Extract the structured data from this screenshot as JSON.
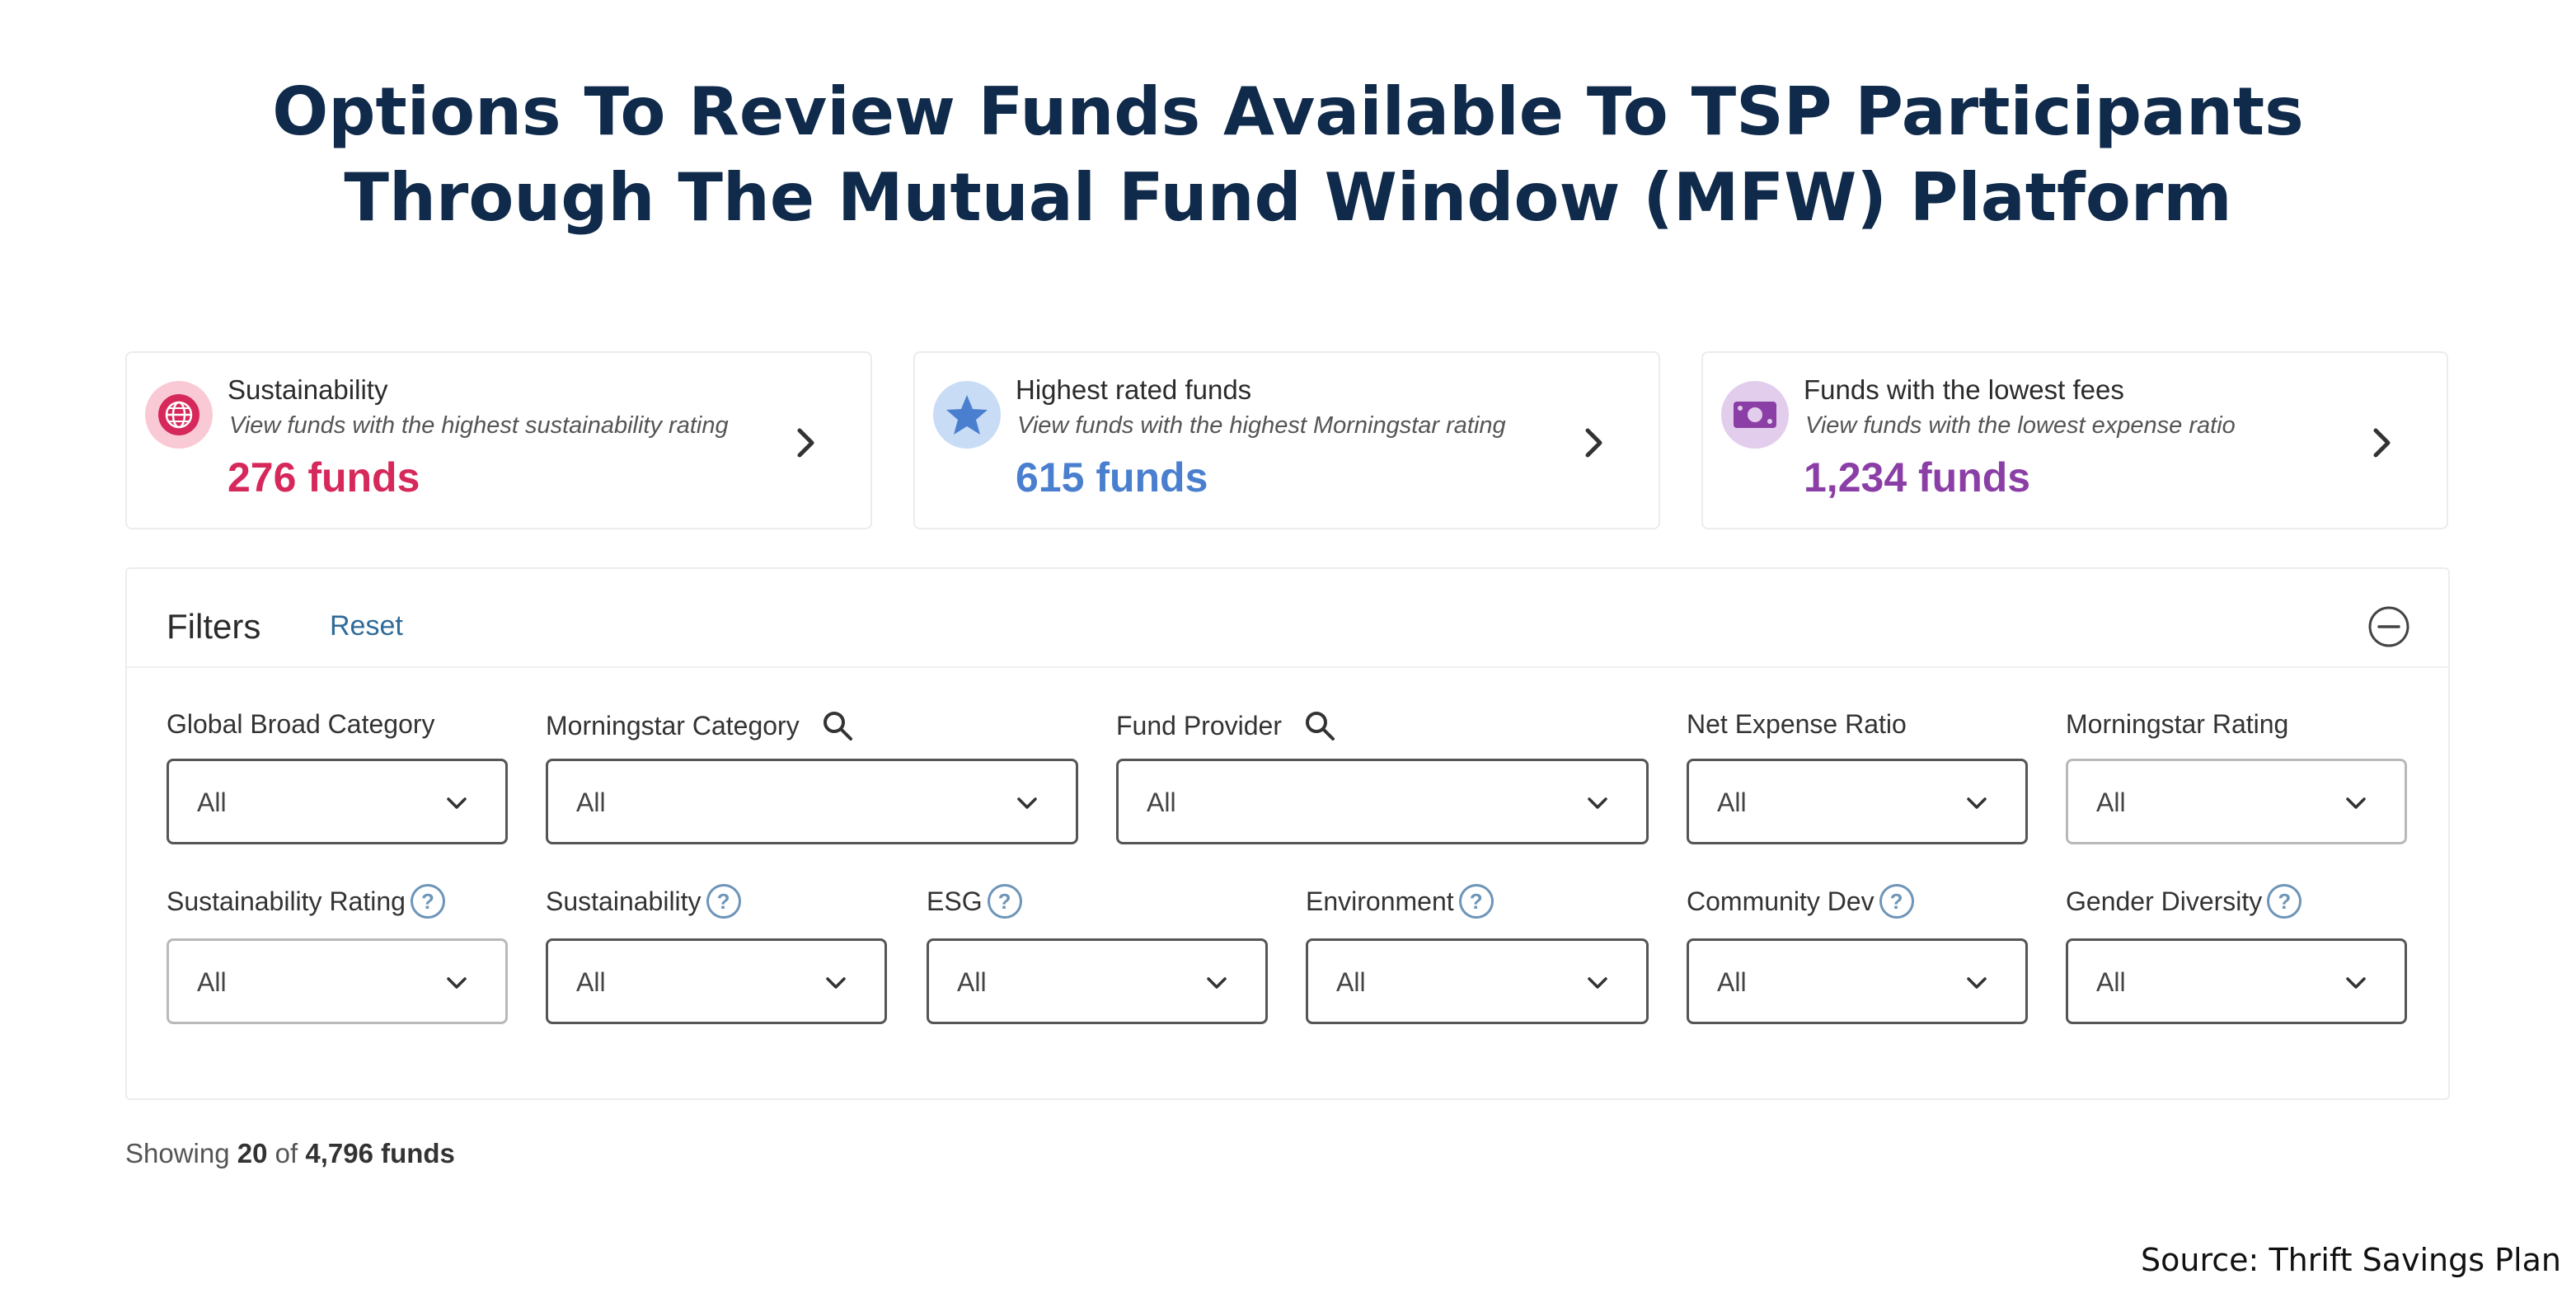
{
  "title": {
    "line1": "Options To Review Funds Available To TSP Participants",
    "line2": "Through The Mutual Fund Window (MFW) Platform"
  },
  "cards": [
    {
      "title": "Sustainability",
      "description": "View funds with the highest sustainability rating",
      "count": "276 funds",
      "icon": "globe-icon",
      "color": "#d6285a",
      "icon_bg": "#f9c9d6"
    },
    {
      "title": "Highest rated funds",
      "description": "View funds with the highest Morningstar rating",
      "count": "615 funds",
      "icon": "star-icon",
      "color": "#4a7fcf",
      "icon_bg": "#c9dcf5"
    },
    {
      "title": "Funds with the lowest fees",
      "description": "View funds with the lowest expense ratio",
      "count": "1,234 funds",
      "icon": "money-icon",
      "color": "#8b3fa6",
      "icon_bg": "#e2cdec"
    }
  ],
  "filters": {
    "title": "Filters",
    "reset": "Reset",
    "help_glyph": "?",
    "row1": [
      {
        "label": "Global Broad Category",
        "value": "All"
      },
      {
        "label": "Morningstar Category",
        "value": "All"
      },
      {
        "label": "Fund Provider",
        "value": "All"
      },
      {
        "label": "Net Expense Ratio",
        "value": "All"
      },
      {
        "label": "Morningstar Rating",
        "value": "All"
      }
    ],
    "row2": [
      {
        "label": "Sustainability Rating",
        "value": "All"
      },
      {
        "label": "Sustainability",
        "value": "All"
      },
      {
        "label": "ESG",
        "value": "All"
      },
      {
        "label": "Environment",
        "value": "All"
      },
      {
        "label": "Community Dev",
        "value": "All"
      },
      {
        "label": "Gender Diversity",
        "value": "All"
      }
    ]
  },
  "results": {
    "prefix": "Showing ",
    "shown": "20",
    "middle": " of ",
    "total": "4,796 funds"
  },
  "source": "Source: Thrift Savings Plan"
}
